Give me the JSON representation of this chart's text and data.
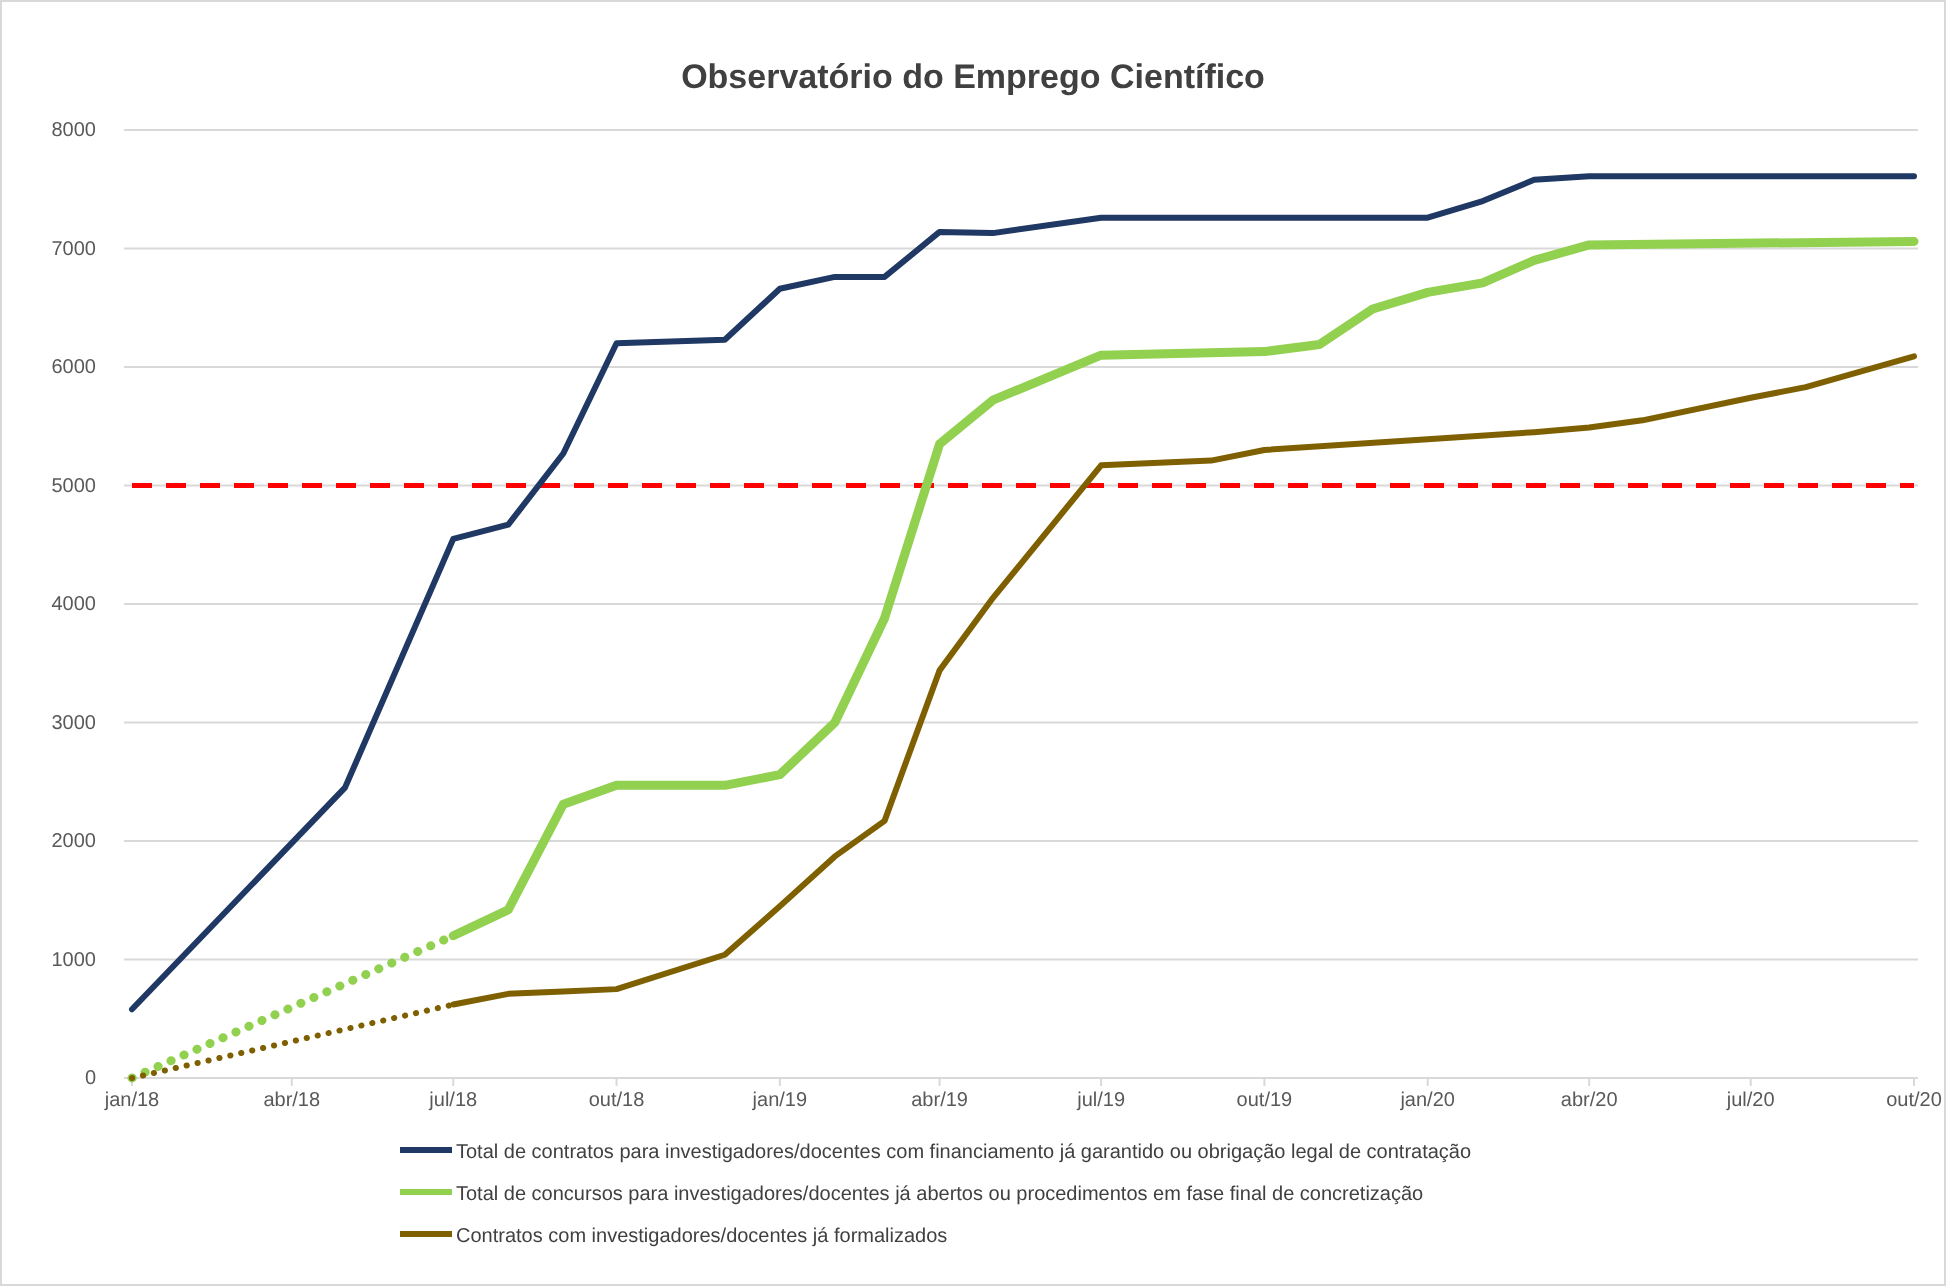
{
  "chart_data": {
    "type": "line",
    "title": "Observatório do Emprego Científico",
    "xlim": [
      "2018-01",
      "2020-10"
    ],
    "xticks": [
      {
        "value": "2018-01",
        "label": "jan/18"
      },
      {
        "value": "2018-04",
        "label": "abr/18"
      },
      {
        "value": "2018-07",
        "label": "jul/18"
      },
      {
        "value": "2018-10",
        "label": "out/18"
      },
      {
        "value": "2019-01",
        "label": "jan/19"
      },
      {
        "value": "2019-04",
        "label": "abr/19"
      },
      {
        "value": "2019-07",
        "label": "jul/19"
      },
      {
        "value": "2019-10",
        "label": "out/19"
      },
      {
        "value": "2020-01",
        "label": "jan/20"
      },
      {
        "value": "2020-04",
        "label": "abr/20"
      },
      {
        "value": "2020-07",
        "label": "jul/20"
      },
      {
        "value": "2020-10",
        "label": "out/20"
      }
    ],
    "ylim": [
      0,
      8000
    ],
    "yticks": [
      0,
      1000,
      2000,
      3000,
      4000,
      5000,
      6000,
      7000,
      8000
    ],
    "grid": "y",
    "legend": "bottom",
    "marker": "none",
    "ref_lines": [
      {
        "axis": "y",
        "value": 5000,
        "color": "#ff0000",
        "line_style": "dashed"
      }
    ],
    "series": [
      {
        "name": "Total de contratos para investigadores/docentes com financiamento já garantido ou obrigação legal de contratação",
        "color": "#1f3864",
        "line_style": "solid",
        "x": [
          "2018-01",
          "2018-05",
          "2018-07",
          "2018-08",
          "2018-09",
          "2018-10",
          "2018-12",
          "2019-01",
          "2019-02",
          "2019-03",
          "2019-04",
          "2019-05",
          "2019-07",
          "2020-01",
          "2020-02",
          "2020-03",
          "2020-04",
          "2020-10"
        ],
        "values": [
          580,
          2450,
          4550,
          4670,
          5270,
          6200,
          6230,
          6660,
          6760,
          6760,
          7140,
          7130,
          7260,
          7260,
          7400,
          7580,
          7610,
          7610
        ]
      },
      {
        "name": "Total de concursos para investigadores/docentes já abertos ou procedimentos em fase final de concretização",
        "color": "#92d050",
        "line_style": "solid",
        "x": [
          "2018-07",
          "2018-08",
          "2018-09",
          "2018-10",
          "2018-12",
          "2019-01",
          "2019-02",
          "2019-03",
          "2019-04",
          "2019-05",
          "2019-07",
          "2019-10",
          "2019-11",
          "2019-12",
          "2020-01",
          "2020-02",
          "2020-03",
          "2020-04",
          "2020-10"
        ],
        "values": [
          1200,
          1420,
          2310,
          2470,
          2470,
          2560,
          3000,
          3880,
          5350,
          5720,
          6100,
          6130,
          6190,
          6490,
          6630,
          6710,
          6900,
          7030,
          7060
        ]
      },
      {
        "name": "Contratos com investigadores/docentes já formalizados",
        "color": "#7f6000",
        "line_style": "solid",
        "x": [
          "2018-07",
          "2018-08",
          "2018-09",
          "2018-10",
          "2018-12",
          "2019-01",
          "2019-02",
          "2019-03",
          "2019-04",
          "2019-05",
          "2019-07",
          "2019-09",
          "2019-10",
          "2020-01",
          "2020-03",
          "2020-04",
          "2020-05",
          "2020-07",
          "2020-08",
          "2020-10"
        ],
        "values": [
          620,
          710,
          730,
          750,
          1040,
          1450,
          1870,
          2170,
          3440,
          4050,
          5170,
          5210,
          5300,
          5390,
          5450,
          5490,
          5550,
          5740,
          5830,
          6090
        ]
      },
      {
        "color": "#92d050",
        "line_style": "dotted",
        "x": [
          "2018-01",
          "2018-07"
        ],
        "values": [
          0,
          1200
        ]
      },
      {
        "color": "#7f6000",
        "line_style": "dotted",
        "x": [
          "2018-01",
          "2018-07"
        ],
        "values": [
          0,
          620
        ]
      }
    ]
  }
}
